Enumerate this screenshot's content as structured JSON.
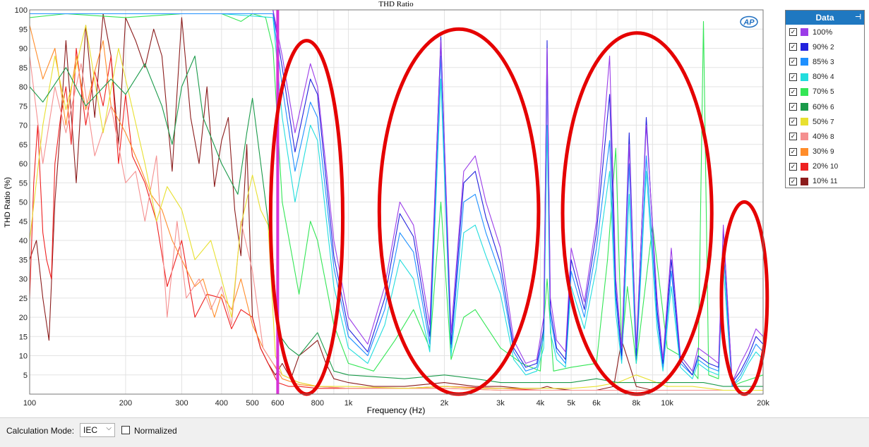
{
  "chart_data": {
    "type": "line",
    "title": "THD Ratio",
    "xlabel": "Frequency (Hz)",
    "ylabel": "THD Ratio (%)",
    "x_scale": "log",
    "xlim": [
      100,
      20000
    ],
    "ylim": [
      0,
      100
    ],
    "x_ticks": [
      {
        "value": 100,
        "label": "100"
      },
      {
        "value": 200,
        "label": "200"
      },
      {
        "value": 300,
        "label": "300"
      },
      {
        "value": 400,
        "label": "400"
      },
      {
        "value": 500,
        "label": "500"
      },
      {
        "value": 600,
        "label": "600"
      },
      {
        "value": 800,
        "label": "800"
      },
      {
        "value": 1000,
        "label": "1k"
      },
      {
        "value": 2000,
        "label": "2k"
      },
      {
        "value": 3000,
        "label": "3k"
      },
      {
        "value": 4000,
        "label": "4k"
      },
      {
        "value": 5000,
        "label": "5k"
      },
      {
        "value": 6000,
        "label": "6k"
      },
      {
        "value": 8000,
        "label": "8k"
      },
      {
        "value": 10000,
        "label": "10k"
      },
      {
        "value": 20000,
        "label": "20k"
      }
    ],
    "y_ticks": [
      5,
      10,
      15,
      20,
      25,
      30,
      35,
      40,
      45,
      50,
      55,
      60,
      65,
      70,
      75,
      80,
      85,
      90,
      95,
      100
    ],
    "grid": true,
    "legend_position": "right",
    "marker_line": {
      "x": 600,
      "color": "#d633d6"
    },
    "highlight_ellipses": [
      {
        "f_low": 570,
        "f_high": 960,
        "y_low": 0,
        "y_high": 92
      },
      {
        "f_low": 1250,
        "f_high": 3950,
        "y_low": 0,
        "y_high": 95
      },
      {
        "f_low": 4700,
        "f_high": 13800,
        "y_low": 0,
        "y_high": 94
      },
      {
        "f_low": 14800,
        "f_high": 20600,
        "y_low": 0,
        "y_high": 50
      }
    ],
    "series": [
      {
        "name": "100%",
        "color": "#9b3ce8",
        "x": [
          100,
          200,
          400,
          580,
          620,
          680,
          760,
          800,
          900,
          1000,
          1150,
          1300,
          1450,
          1600,
          1800,
          1950,
          2100,
          2300,
          2500,
          2700,
          3000,
          3300,
          3600,
          3900,
          4100,
          4200,
          4300,
          4500,
          4800,
          5000,
          5500,
          6000,
          6600,
          6900,
          7200,
          7600,
          8000,
          8600,
          9300,
          9700,
          10300,
          11000,
          12000,
          12500,
          13500,
          14500,
          15000,
          16000,
          17000,
          18000,
          19000,
          20000
        ],
        "y": [
          100,
          100,
          100,
          100,
          88,
          68,
          86,
          80,
          40,
          20,
          13,
          28,
          50,
          44,
          18,
          92,
          16,
          58,
          62,
          50,
          38,
          14,
          8,
          9,
          20,
          90,
          25,
          14,
          11,
          38,
          24,
          45,
          88,
          30,
          12,
          65,
          12,
          70,
          25,
          9,
          38,
          10,
          6,
          12,
          10,
          8,
          44,
          3,
          8,
          12,
          17,
          15
        ]
      },
      {
        "name": "90%",
        "color": "#2222dd",
        "x": [
          100,
          200,
          400,
          580,
          620,
          680,
          760,
          800,
          900,
          1000,
          1150,
          1300,
          1450,
          1600,
          1800,
          1950,
          2100,
          2300,
          2500,
          2700,
          3000,
          3300,
          3600,
          3900,
          4100,
          4200,
          4300,
          4500,
          4800,
          5000,
          5500,
          6000,
          6600,
          6900,
          7200,
          7600,
          8000,
          8600,
          9300,
          9700,
          10300,
          11000,
          12000,
          12500,
          13500,
          14500,
          15000,
          16000,
          17000,
          18000,
          19000,
          20000
        ],
        "y": [
          100,
          100,
          100,
          100,
          85,
          63,
          82,
          78,
          36,
          17,
          11,
          25,
          47,
          41,
          15,
          93,
          13,
          55,
          58,
          46,
          34,
          12,
          7,
          8,
          17,
          92,
          22,
          12,
          9,
          35,
          22,
          42,
          78,
          27,
          10,
          68,
          10,
          72,
          22,
          8,
          35,
          9,
          5,
          10,
          8,
          7,
          43,
          3,
          6,
          10,
          15,
          13
        ]
      },
      {
        "name": "85%",
        "color": "#1e90ff",
        "x": [
          100,
          200,
          400,
          580,
          620,
          680,
          760,
          800,
          900,
          1000,
          1150,
          1300,
          1450,
          1600,
          1800,
          1950,
          2100,
          2300,
          2500,
          2700,
          3000,
          3300,
          3600,
          3900,
          4100,
          4200,
          4300,
          4500,
          4800,
          5000,
          5500,
          6000,
          6600,
          6900,
          7200,
          7600,
          8000,
          8600,
          9300,
          9700,
          10300,
          11000,
          12000,
          12500,
          13500,
          14500,
          15000,
          16000,
          17000,
          18000,
          19000,
          20000
        ],
        "y": [
          99,
          99,
          99,
          99,
          80,
          58,
          76,
          72,
          33,
          15,
          10,
          22,
          42,
          37,
          13,
          88,
          12,
          50,
          52,
          42,
          31,
          11,
          6,
          7,
          15,
          84,
          20,
          11,
          8,
          32,
          20,
          38,
          66,
          25,
          9,
          60,
          9,
          62,
          20,
          7,
          32,
          8,
          5,
          9,
          7,
          6,
          38,
          2,
          5,
          9,
          13,
          11
        ]
      },
      {
        "name": "80%",
        "color": "#22dddd",
        "x": [
          100,
          200,
          400,
          580,
          620,
          680,
          760,
          800,
          900,
          1000,
          1150,
          1300,
          1450,
          1600,
          1800,
          1950,
          2100,
          2300,
          2500,
          2700,
          3000,
          3300,
          3600,
          3900,
          4100,
          4200,
          4300,
          4500,
          4800,
          5000,
          5500,
          6000,
          6600,
          6900,
          7200,
          7600,
          8000,
          8600,
          9300,
          9700,
          10300,
          11000,
          12000,
          12500,
          13500,
          14500,
          15000,
          16000,
          17000,
          18000,
          19000,
          20000
        ],
        "y": [
          99,
          99,
          99,
          98,
          72,
          50,
          70,
          66,
          28,
          12,
          8,
          18,
          35,
          30,
          11,
          82,
          10,
          42,
          44,
          36,
          26,
          9,
          5,
          6,
          12,
          70,
          16,
          9,
          7,
          28,
          17,
          33,
          58,
          21,
          8,
          52,
          8,
          58,
          17,
          6,
          28,
          7,
          4,
          8,
          6,
          5,
          33,
          2,
          4,
          8,
          11,
          9
        ]
      },
      {
        "name": "70%",
        "color": "#33e655",
        "x": [
          100,
          130,
          200,
          300,
          400,
          460,
          500,
          550,
          580,
          620,
          700,
          760,
          800,
          900,
          1000,
          1200,
          1400,
          1600,
          1800,
          1950,
          2100,
          2300,
          2500,
          3000,
          3500,
          4000,
          4200,
          4400,
          5000,
          6000,
          6500,
          6900,
          7200,
          7500,
          8000,
          9000,
          10000,
          11000,
          12000,
          12500,
          13000,
          13500,
          14500,
          15000,
          16000,
          17000,
          20000
        ],
        "y": [
          98,
          99,
          98,
          99,
          99,
          97,
          99,
          98,
          90,
          50,
          26,
          45,
          40,
          18,
          8,
          6,
          14,
          22,
          12,
          50,
          9,
          20,
          22,
          12,
          8,
          6,
          30,
          6,
          7,
          8,
          35,
          64,
          12,
          28,
          8,
          44,
          12,
          10,
          6,
          4,
          97,
          5,
          4,
          38,
          2,
          3,
          5
        ]
      },
      {
        "name": "60%",
        "color": "#1a9a4a",
        "x": [
          100,
          110,
          130,
          150,
          180,
          200,
          230,
          260,
          280,
          300,
          330,
          350,
          400,
          450,
          480,
          500,
          550,
          580,
          600,
          650,
          700,
          800,
          900,
          1000,
          1500,
          2000,
          2500,
          3000,
          4000,
          5000,
          6000,
          7000,
          8000,
          10000,
          13000,
          15000,
          20000
        ],
        "y": [
          80,
          76,
          85,
          75,
          82,
          78,
          86,
          75,
          65,
          80,
          88,
          72,
          60,
          52,
          68,
          77,
          50,
          35,
          16,
          12,
          10,
          16,
          6,
          5,
          4,
          5,
          4,
          3,
          3,
          3,
          4,
          3,
          3,
          3,
          3,
          2,
          2
        ]
      },
      {
        "name": "50%",
        "color": "#e8e030",
        "x": [
          100,
          110,
          120,
          130,
          150,
          170,
          190,
          200,
          230,
          250,
          270,
          300,
          330,
          370,
          400,
          430,
          460,
          500,
          530,
          560,
          590,
          620,
          700,
          800,
          1000,
          1500,
          2000,
          2500,
          3000,
          4000,
          5000,
          6000,
          7000,
          8000,
          10000,
          12000,
          15000,
          20000
        ],
        "y": [
          40,
          70,
          88,
          74,
          96,
          68,
          90,
          82,
          60,
          45,
          54,
          48,
          35,
          40,
          30,
          20,
          44,
          57,
          48,
          44,
          10,
          5,
          3,
          2,
          2,
          1.5,
          2,
          1.5,
          1.5,
          1.5,
          1.5,
          2,
          3,
          5,
          2,
          2,
          1,
          1
        ]
      },
      {
        "name": "40%",
        "color": "#f59090",
        "x": [
          100,
          110,
          120,
          130,
          145,
          160,
          180,
          200,
          215,
          230,
          250,
          270,
          290,
          310,
          340,
          370,
          400,
          430,
          460,
          500,
          540,
          580,
          620,
          700,
          800,
          1000,
          1500,
          2000,
          3000,
          5000,
          8000,
          12000,
          20000
        ],
        "y": [
          88,
          60,
          80,
          68,
          86,
          62,
          75,
          55,
          58,
          45,
          62,
          20,
          45,
          25,
          30,
          22,
          28,
          18,
          45,
          32,
          12,
          8,
          5,
          3,
          2,
          1.5,
          1.5,
          1.5,
          1,
          1,
          1,
          1,
          1
        ]
      },
      {
        "name": "30%",
        "color": "#ff8c2a",
        "x": [
          100,
          110,
          120,
          130,
          140,
          150,
          160,
          170,
          180,
          200,
          220,
          240,
          260,
          280,
          300,
          330,
          350,
          380,
          400,
          430,
          460,
          500,
          540,
          580,
          620,
          700,
          800,
          1000,
          1500,
          2000,
          3000,
          5000,
          8000,
          12000,
          20000
        ],
        "y": [
          96,
          82,
          90,
          70,
          88,
          74,
          84,
          92,
          75,
          68,
          60,
          52,
          48,
          40,
          35,
          28,
          30,
          20,
          26,
          22,
          30,
          18,
          12,
          8,
          4,
          2.5,
          2,
          1.5,
          1.5,
          1.5,
          1,
          1,
          1,
          1,
          1
        ]
      },
      {
        "name": "20%",
        "color": "#ee2020",
        "x": [
          100,
          103,
          106,
          110,
          113,
          117,
          120,
          125,
          130,
          135,
          140,
          150,
          160,
          170,
          180,
          190,
          200,
          210,
          230,
          250,
          270,
          300,
          330,
          360,
          400,
          430,
          460,
          500,
          530,
          560,
          600,
          650,
          700,
          800,
          1000,
          1500,
          2000,
          3000,
          4000,
          5000,
          7000,
          10000,
          15000,
          20000
        ],
        "y": [
          25,
          55,
          70,
          42,
          35,
          30,
          60,
          72,
          80,
          65,
          90,
          70,
          84,
          75,
          88,
          60,
          78,
          62,
          55,
          45,
          28,
          40,
          20,
          26,
          25,
          17,
          22,
          20,
          12,
          8,
          3,
          2,
          2,
          1.5,
          1.5,
          1.5,
          2,
          1.5,
          1,
          1,
          1,
          1,
          1,
          1
        ]
      },
      {
        "name": "10%",
        "color": "#8b1c1c",
        "x": [
          100,
          105,
          110,
          115,
          120,
          125,
          130,
          140,
          150,
          160,
          170,
          180,
          190,
          200,
          215,
          230,
          245,
          260,
          280,
          300,
          320,
          340,
          360,
          380,
          400,
          420,
          440,
          460,
          480,
          500,
          530,
          560,
          590,
          620,
          660,
          700,
          750,
          800,
          850,
          900,
          1000,
          1200,
          1500,
          2000,
          2500,
          3000,
          3500,
          4000,
          4200,
          4400,
          5000,
          6000,
          6800,
          7200,
          8000,
          9000,
          10000,
          12000,
          14000,
          15000,
          20000
        ],
        "y": [
          35,
          40,
          25,
          14,
          50,
          70,
          92,
          55,
          96,
          72,
          99,
          88,
          65,
          98,
          92,
          85,
          95,
          88,
          58,
          98,
          72,
          60,
          80,
          54,
          66,
          72,
          48,
          36,
          65,
          20,
          12,
          8,
          5,
          8,
          4,
          10,
          12,
          14,
          8,
          4,
          3,
          2,
          2,
          3,
          2,
          2,
          1.5,
          1.5,
          2,
          1.5,
          1,
          1,
          2,
          14,
          2,
          1,
          1,
          1,
          1,
          1,
          1
        ]
      }
    ]
  },
  "legend": {
    "header": "Data",
    "pin_icon": "pin-icon",
    "items": [
      {
        "name": "100%",
        "number": "",
        "color": "#9b3ce8"
      },
      {
        "name": "90%",
        "number": "2",
        "color": "#2222dd"
      },
      {
        "name": "85%",
        "number": "3",
        "color": "#1e90ff"
      },
      {
        "name": "80%",
        "number": "4",
        "color": "#22dddd"
      },
      {
        "name": "70%",
        "number": "5",
        "color": "#33e655"
      },
      {
        "name": "60%",
        "number": "6",
        "color": "#1a9a4a"
      },
      {
        "name": "50%",
        "number": "7",
        "color": "#e8e030"
      },
      {
        "name": "40%",
        "number": "8",
        "color": "#f59090"
      },
      {
        "name": "30%",
        "number": "9",
        "color": "#ff8c2a"
      },
      {
        "name": "20%",
        "number": "10",
        "color": "#ee2020"
      },
      {
        "name": "10%",
        "number": "11",
        "color": "#8b1c1c"
      }
    ]
  },
  "logo_text": "AP",
  "bottom": {
    "calc_label": "Calculation Mode:",
    "calc_value": "IEC",
    "normalized_label": "Normalized",
    "normalized_checked": false
  }
}
